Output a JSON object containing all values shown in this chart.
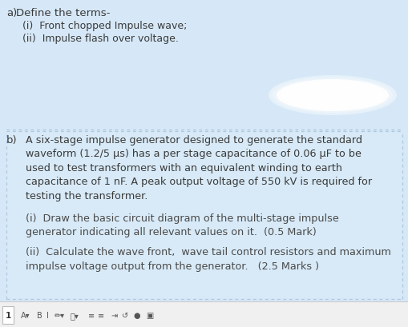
{
  "bg_color": "#d6e8f7",
  "white_panel_color": "#ffffff",
  "section_b_bg": "#e8f2fb",
  "border_color": "#aec8e0",
  "text_color": "#3a3a3a",
  "gray_text": "#4a4a4a",
  "title_a": "a)",
  "title_b": "b)",
  "define_label": "Define the terms-",
  "line_a1": "(i)  Front chopped Impulse wave;",
  "line_a2": "(ii)  Impulse flash over voltage.",
  "para_b_line1": "A six-stage impulse generator designed to generate the standard",
  "para_b_line2": "waveform (1.2/5 μs) has a per stage capacitance of 0.06 μF to be",
  "para_b_line3": "used to test transformers with an equivalent winding to earth",
  "para_b_line4": "capacitance of 1 nF. A peak output voltage of 550 kV is required for",
  "para_b_line5": "testing the transformer.",
  "sub_bi_line1": "(i)  Draw the basic circuit diagram of the multi-stage impulse",
  "sub_bi_line2": "generator indicating all relevant values on it.  (0.5 Mark)",
  "sub_bii_line1": "(ii)  Calculate the wave front,  wave tail control resistors and maximum",
  "sub_bii_line2": "impulse voltage output from the generator.   (2.5 Marks )",
  "toolbar_bg": "#f0f0f0",
  "toolbar_border": "#cccccc",
  "figure_width": 5.1,
  "figure_height": 4.1,
  "dpi": 100
}
